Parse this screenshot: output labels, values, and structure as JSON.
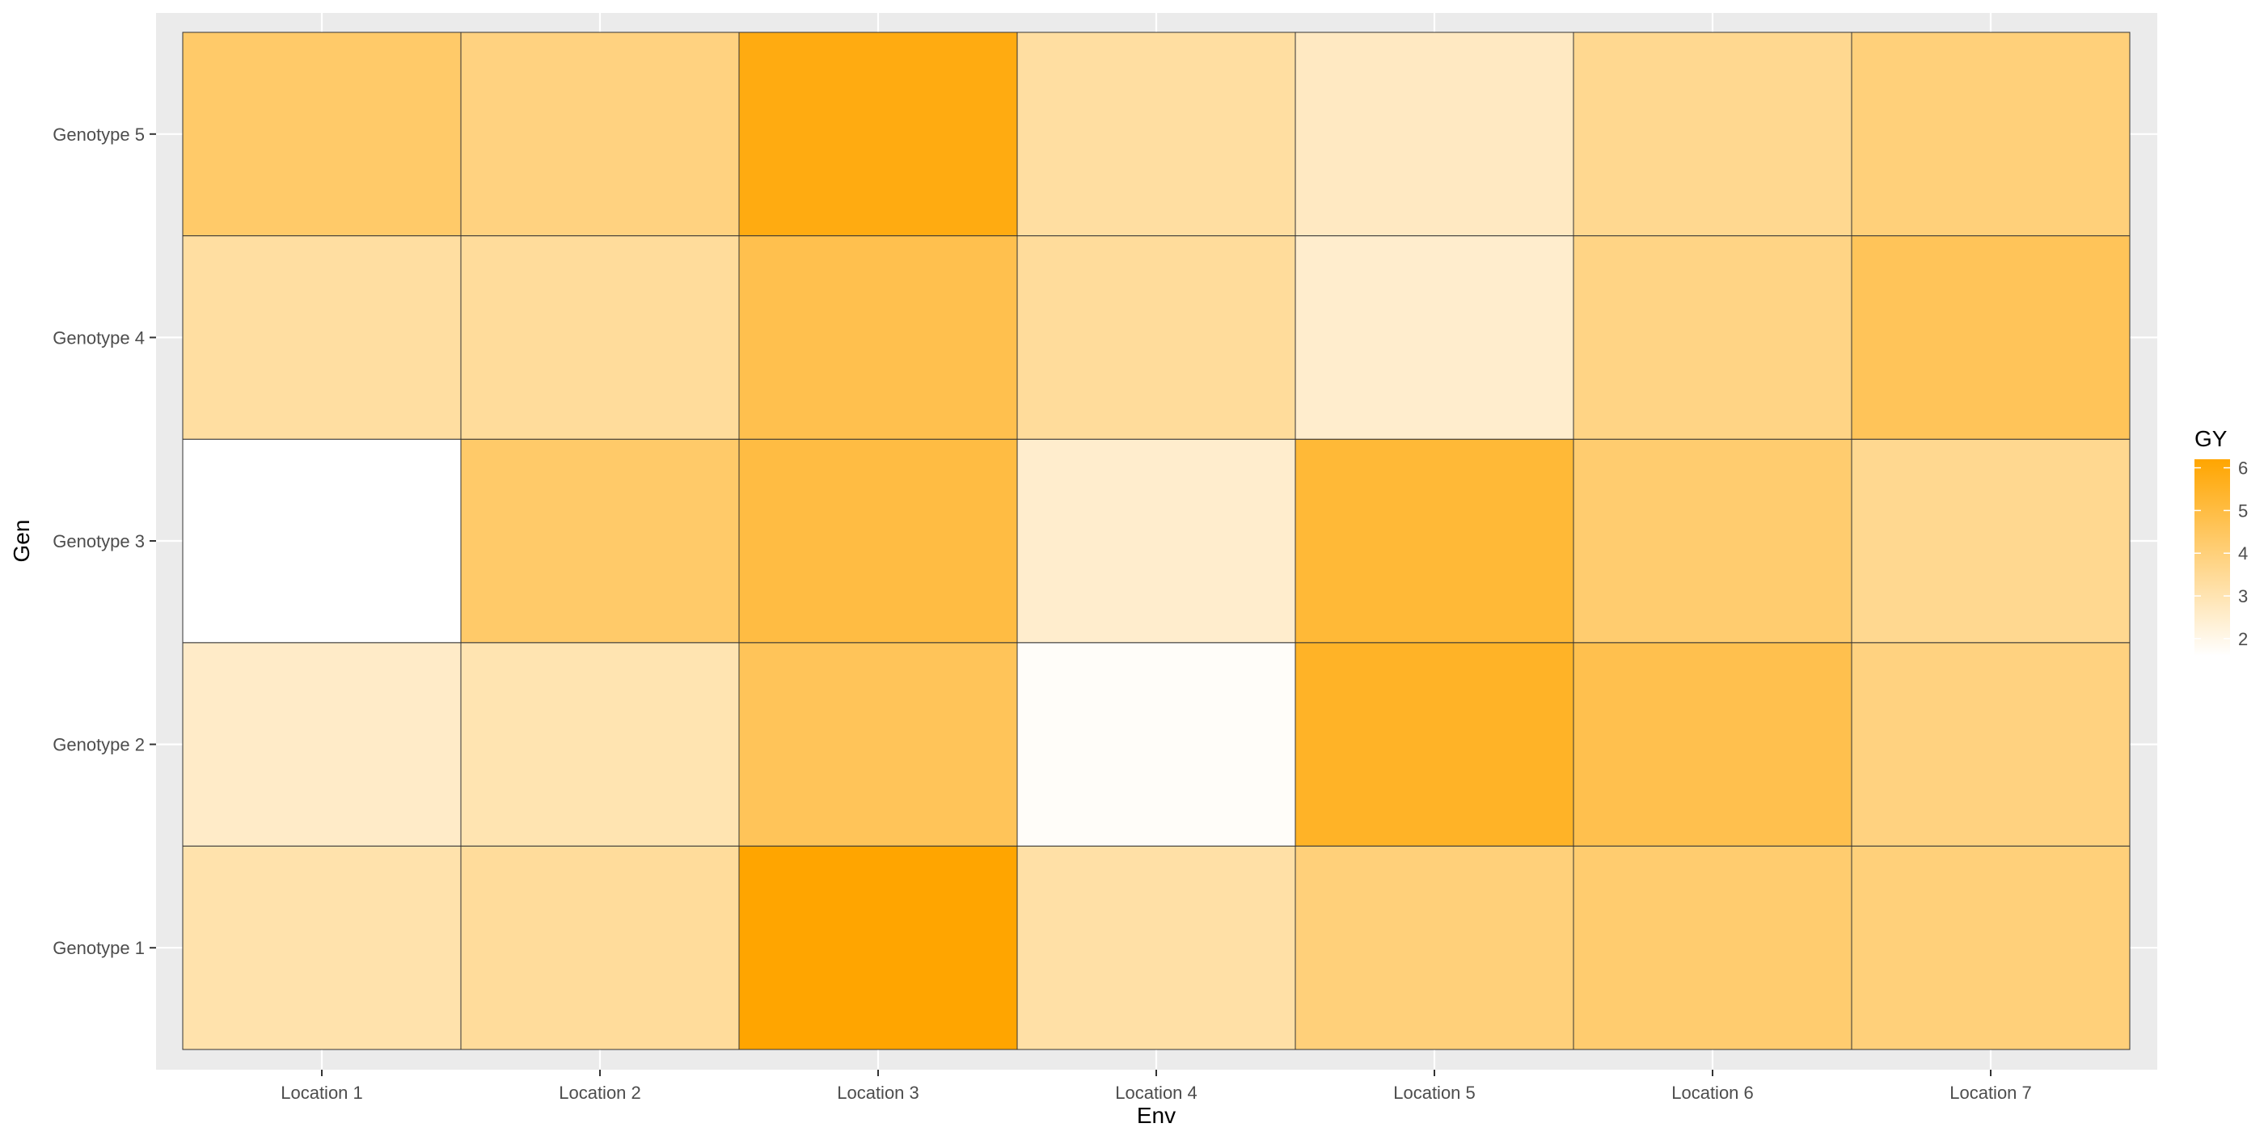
{
  "chart_data": {
    "type": "heatmap",
    "xlabel": "Env",
    "ylabel": "Gen",
    "x_categories": [
      "Location 1",
      "Location 2",
      "Location 3",
      "Location 4",
      "Location 5",
      "Location 6",
      "Location 7"
    ],
    "y_categories": [
      "Genotype 1",
      "Genotype 2",
      "Genotype 3",
      "Genotype 4",
      "Genotype 5"
    ],
    "values": [
      [
        3.1,
        3.4,
        6.2,
        3.2,
        4.0,
        4.2,
        4.0
      ],
      [
        2.6,
        3.0,
        4.6,
        1.7,
        5.5,
        4.8,
        3.9
      ],
      [
        1.6,
        4.3,
        5.0,
        2.5,
        5.2,
        4.2,
        3.6
      ],
      [
        3.3,
        3.4,
        4.8,
        3.4,
        2.5,
        3.8,
        4.6
      ],
      [
        4.3,
        3.9,
        5.9,
        3.3,
        2.7,
        3.6,
        4.0
      ]
    ],
    "legend": {
      "title": "GY",
      "position": "right",
      "ticks": [
        2,
        3,
        4,
        5,
        6
      ],
      "range": [
        1.6,
        6.2
      ],
      "low_color": "#ffffff",
      "high_color": "#ffa500"
    },
    "grid": true
  }
}
